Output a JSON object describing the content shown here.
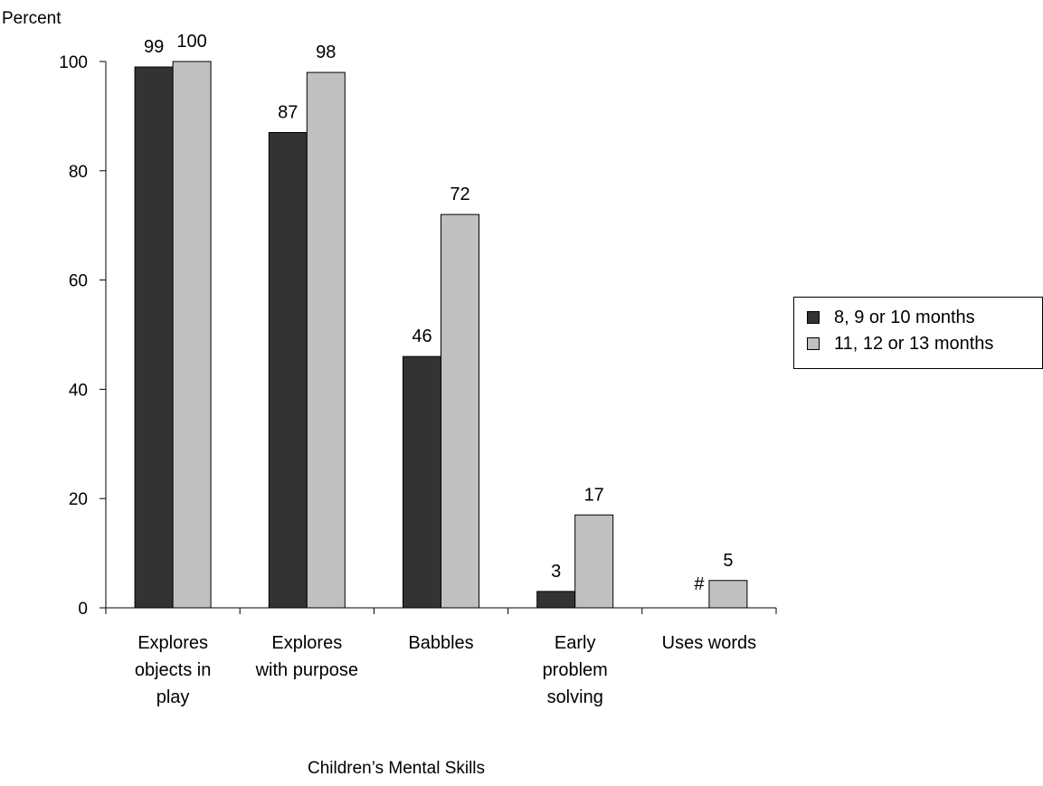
{
  "chart_data": {
    "type": "bar",
    "title": "",
    "ylabel": "Percent",
    "xlabel": "Children’s Mental Skills",
    "ylim": [
      0,
      100
    ],
    "yticks": [
      0,
      20,
      40,
      60,
      80,
      100
    ],
    "categories": [
      [
        "Explores",
        "objects in",
        "play"
      ],
      [
        "Explores",
        "with purpose"
      ],
      [
        "Babbles"
      ],
      [
        "Early",
        "problem",
        "solving"
      ],
      [
        "Uses words"
      ]
    ],
    "series": [
      {
        "name": "8, 9 or 10 months",
        "color": "#333333",
        "values": [
          99,
          87,
          46,
          3,
          null
        ],
        "labels": [
          "99",
          "87",
          "46",
          "3",
          "#"
        ]
      },
      {
        "name": "11, 12 or 13 months",
        "color": "#c0c0c0",
        "values": [
          100,
          98,
          72,
          17,
          5
        ],
        "labels": [
          "100",
          "98",
          "72",
          "17",
          "5"
        ]
      }
    ],
    "legend_position": "right",
    "grid": false
  }
}
